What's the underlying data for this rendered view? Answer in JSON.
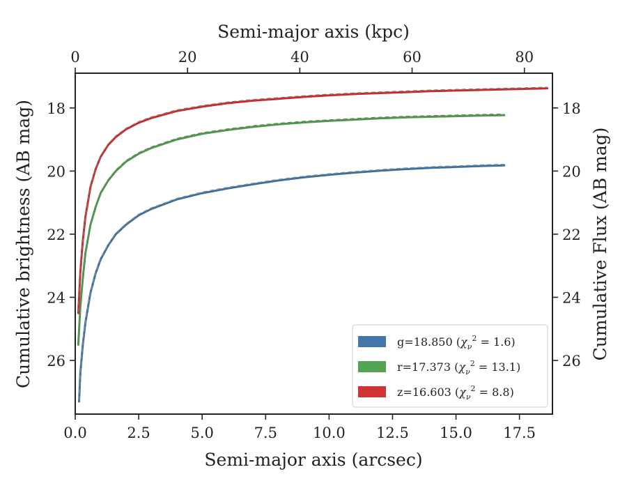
{
  "chart_data": {
    "type": "line",
    "bottom_axis": {
      "label": "Semi-major axis (arcsec)",
      "lim": [
        0.0,
        18.8
      ],
      "ticks": [
        0.0,
        2.5,
        5.0,
        7.5,
        10.0,
        12.5,
        15.0,
        17.5
      ],
      "tick_labels": [
        "0.0",
        "2.5",
        "5.0",
        "7.5",
        "10.0",
        "12.5",
        "15.0",
        "17.5"
      ]
    },
    "top_axis": {
      "label": "Semi-major axis (kpc)",
      "lim": [
        0,
        85
      ],
      "ticks": [
        0,
        20,
        40,
        60,
        80
      ],
      "tick_labels": [
        "0",
        "20",
        "40",
        "60",
        "80"
      ]
    },
    "left_axis": {
      "label": "Cumulative brightness (AB mag)",
      "lim": [
        27.7,
        16.9
      ],
      "inverted": true,
      "ticks": [
        18,
        20,
        22,
        24,
        26
      ],
      "tick_labels": [
        "18",
        "20",
        "22",
        "24",
        "26"
      ]
    },
    "right_axis": {
      "label": "Cumulative Flux (AB mag)",
      "lim": [
        27.7,
        16.9
      ],
      "inverted": true,
      "ticks": [
        18,
        20,
        22,
        24,
        26
      ],
      "tick_labels": [
        "18",
        "20",
        "22",
        "24",
        "26"
      ]
    },
    "legend": {
      "position": "lower-right",
      "entries": [
        {
          "band": "g",
          "text": "g=18.850 (",
          "chi": "χ",
          "sub": "ν",
          "sup": "2",
          "rest": " = 1.6)",
          "color": "#4477aa"
        },
        {
          "band": "r",
          "text": "r=17.373 (",
          "chi": "χ",
          "sub": "ν",
          "sup": "2",
          "rest": " = 13.1)",
          "color": "#55a355"
        },
        {
          "band": "z",
          "text": "z=16.603 (",
          "chi": "χ",
          "sub": "ν",
          "sup": "2",
          "rest": " = 8.8)",
          "color": "#d13337"
        }
      ]
    },
    "series": [
      {
        "band": "g",
        "color": "#3a6f9f",
        "fit_color": "#7a8a95",
        "x": [
          0.15,
          0.2,
          0.3,
          0.4,
          0.6,
          0.8,
          1.0,
          1.3,
          1.6,
          2.0,
          2.5,
          3.0,
          4.0,
          5.0,
          6.0,
          7.0,
          8.0,
          9.0,
          10.0,
          11.0,
          12.0,
          13.0,
          14.0,
          15.0,
          16.0,
          16.9
        ],
        "y": [
          27.3,
          26.4,
          25.5,
          24.8,
          23.85,
          23.25,
          22.8,
          22.35,
          22.0,
          21.7,
          21.4,
          21.2,
          20.9,
          20.7,
          20.55,
          20.42,
          20.3,
          20.2,
          20.12,
          20.05,
          19.99,
          19.94,
          19.9,
          19.87,
          19.84,
          19.82
        ]
      },
      {
        "band": "r",
        "color": "#4a9a4a",
        "fit_color": "#6f7f6f",
        "x": [
          0.12,
          0.2,
          0.3,
          0.4,
          0.6,
          0.8,
          1.0,
          1.3,
          1.6,
          2.0,
          2.5,
          3.0,
          4.0,
          5.0,
          6.0,
          7.0,
          8.0,
          9.0,
          10.0,
          11.0,
          12.0,
          13.0,
          14.0,
          15.0,
          16.0,
          16.9
        ],
        "y": [
          25.5,
          24.3,
          23.4,
          22.6,
          21.7,
          21.15,
          20.7,
          20.3,
          20.0,
          19.7,
          19.45,
          19.27,
          19.0,
          18.82,
          18.7,
          18.6,
          18.52,
          18.46,
          18.41,
          18.37,
          18.33,
          18.3,
          18.28,
          18.26,
          18.24,
          18.23
        ]
      },
      {
        "band": "z",
        "color": "#c82a2e",
        "fit_color": "#8a6a6a",
        "x": [
          0.12,
          0.2,
          0.3,
          0.4,
          0.6,
          0.8,
          1.0,
          1.3,
          1.6,
          2.0,
          2.5,
          3.0,
          4.0,
          5.0,
          6.0,
          7.0,
          8.0,
          9.0,
          10.0,
          11.0,
          12.0,
          13.0,
          14.0,
          15.0,
          16.0,
          17.0,
          18.0,
          18.6
        ],
        "y": [
          24.5,
          23.2,
          22.2,
          21.45,
          20.5,
          19.95,
          19.55,
          19.17,
          18.92,
          18.68,
          18.47,
          18.32,
          18.1,
          17.96,
          17.85,
          17.77,
          17.71,
          17.65,
          17.6,
          17.56,
          17.53,
          17.5,
          17.47,
          17.45,
          17.43,
          17.41,
          17.39,
          17.38
        ]
      }
    ]
  }
}
